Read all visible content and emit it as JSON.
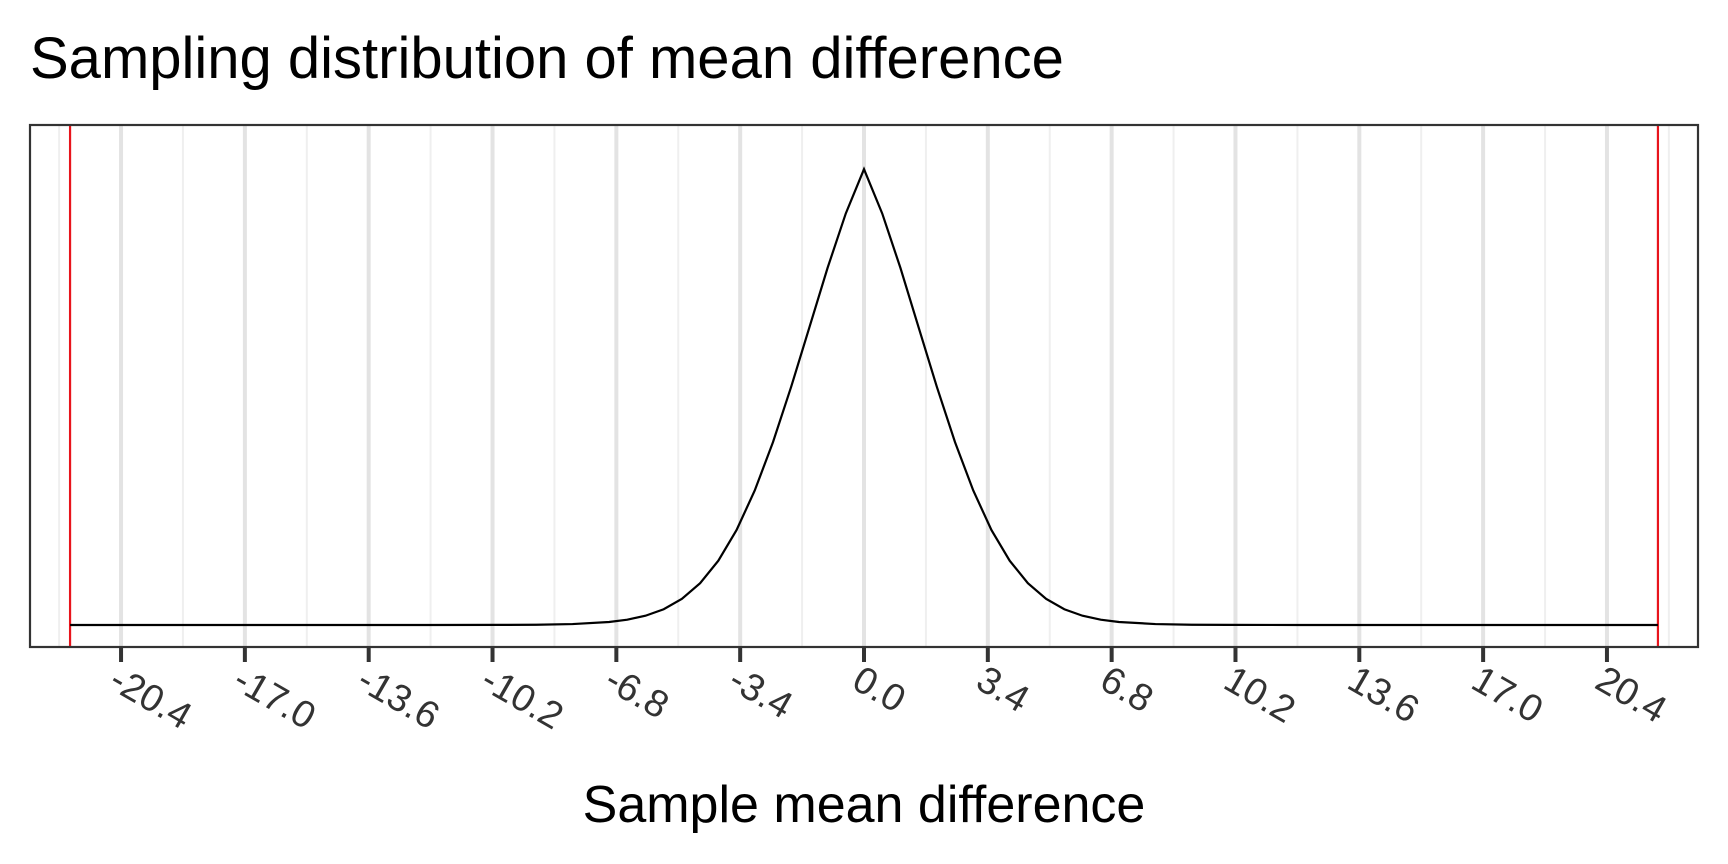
{
  "chart_data": {
    "type": "line",
    "title": "Sampling distribution of mean difference",
    "xlabel": "Sample mean difference",
    "ylabel": "",
    "xlim": [
      -22.9,
      22.9
    ],
    "x_ticks": [
      -20.4,
      -17.0,
      -13.6,
      -10.2,
      -6.8,
      -3.4,
      0.0,
      3.4,
      6.8,
      10.2,
      13.6,
      17.0,
      20.4
    ],
    "x_tick_labels": [
      "-20.4",
      "-17.0",
      "-13.6",
      "-10.2",
      "-6.8",
      "-3.4",
      "0.0",
      "3.4",
      "6.8",
      "10.2",
      "13.6",
      "17.0",
      "20.4"
    ],
    "y_ticks_visible": false,
    "grid": "vertical",
    "colors": {
      "curve": "#000000",
      "critical_lines": "#e8141c",
      "grid_major": "#e3e3e3",
      "grid_minor": "#efefef",
      "panel_border": "#333333"
    },
    "series": [
      {
        "x": [
          -21.8,
          -16,
          -12,
          -10,
          -9,
          -8,
          -7,
          -6.5,
          -6,
          -5.5,
          -5,
          -4.5,
          -4,
          -3.5,
          -3,
          -2.5,
          -2,
          -1.5,
          -1,
          -0.5,
          0,
          0.5,
          1,
          1.5,
          2,
          2.5,
          3,
          3.5,
          4,
          4.5,
          5,
          5.5,
          6,
          6.5,
          7,
          8,
          9,
          10,
          12,
          16,
          21.8
        ],
        "y": [
          0.0,
          0.0,
          0.0,
          0.0001,
          0.0002,
          0.0008,
          0.0025,
          0.0044,
          0.0077,
          0.0131,
          0.0217,
          0.0347,
          0.0534,
          0.0788,
          0.1117,
          0.1518,
          0.1978,
          0.2471,
          0.2966,
          0.3418,
          0.3786,
          0.3418,
          0.2966,
          0.2471,
          0.1978,
          0.1518,
          0.1117,
          0.0788,
          0.0534,
          0.0347,
          0.0217,
          0.0131,
          0.0077,
          0.0044,
          0.0025,
          0.0008,
          0.0002,
          0.0001,
          0.0,
          0.0,
          0.0
        ]
      }
    ],
    "critical_values": [
      -21.8,
      21.8
    ],
    "ylim": [
      0,
      0.397
    ]
  }
}
